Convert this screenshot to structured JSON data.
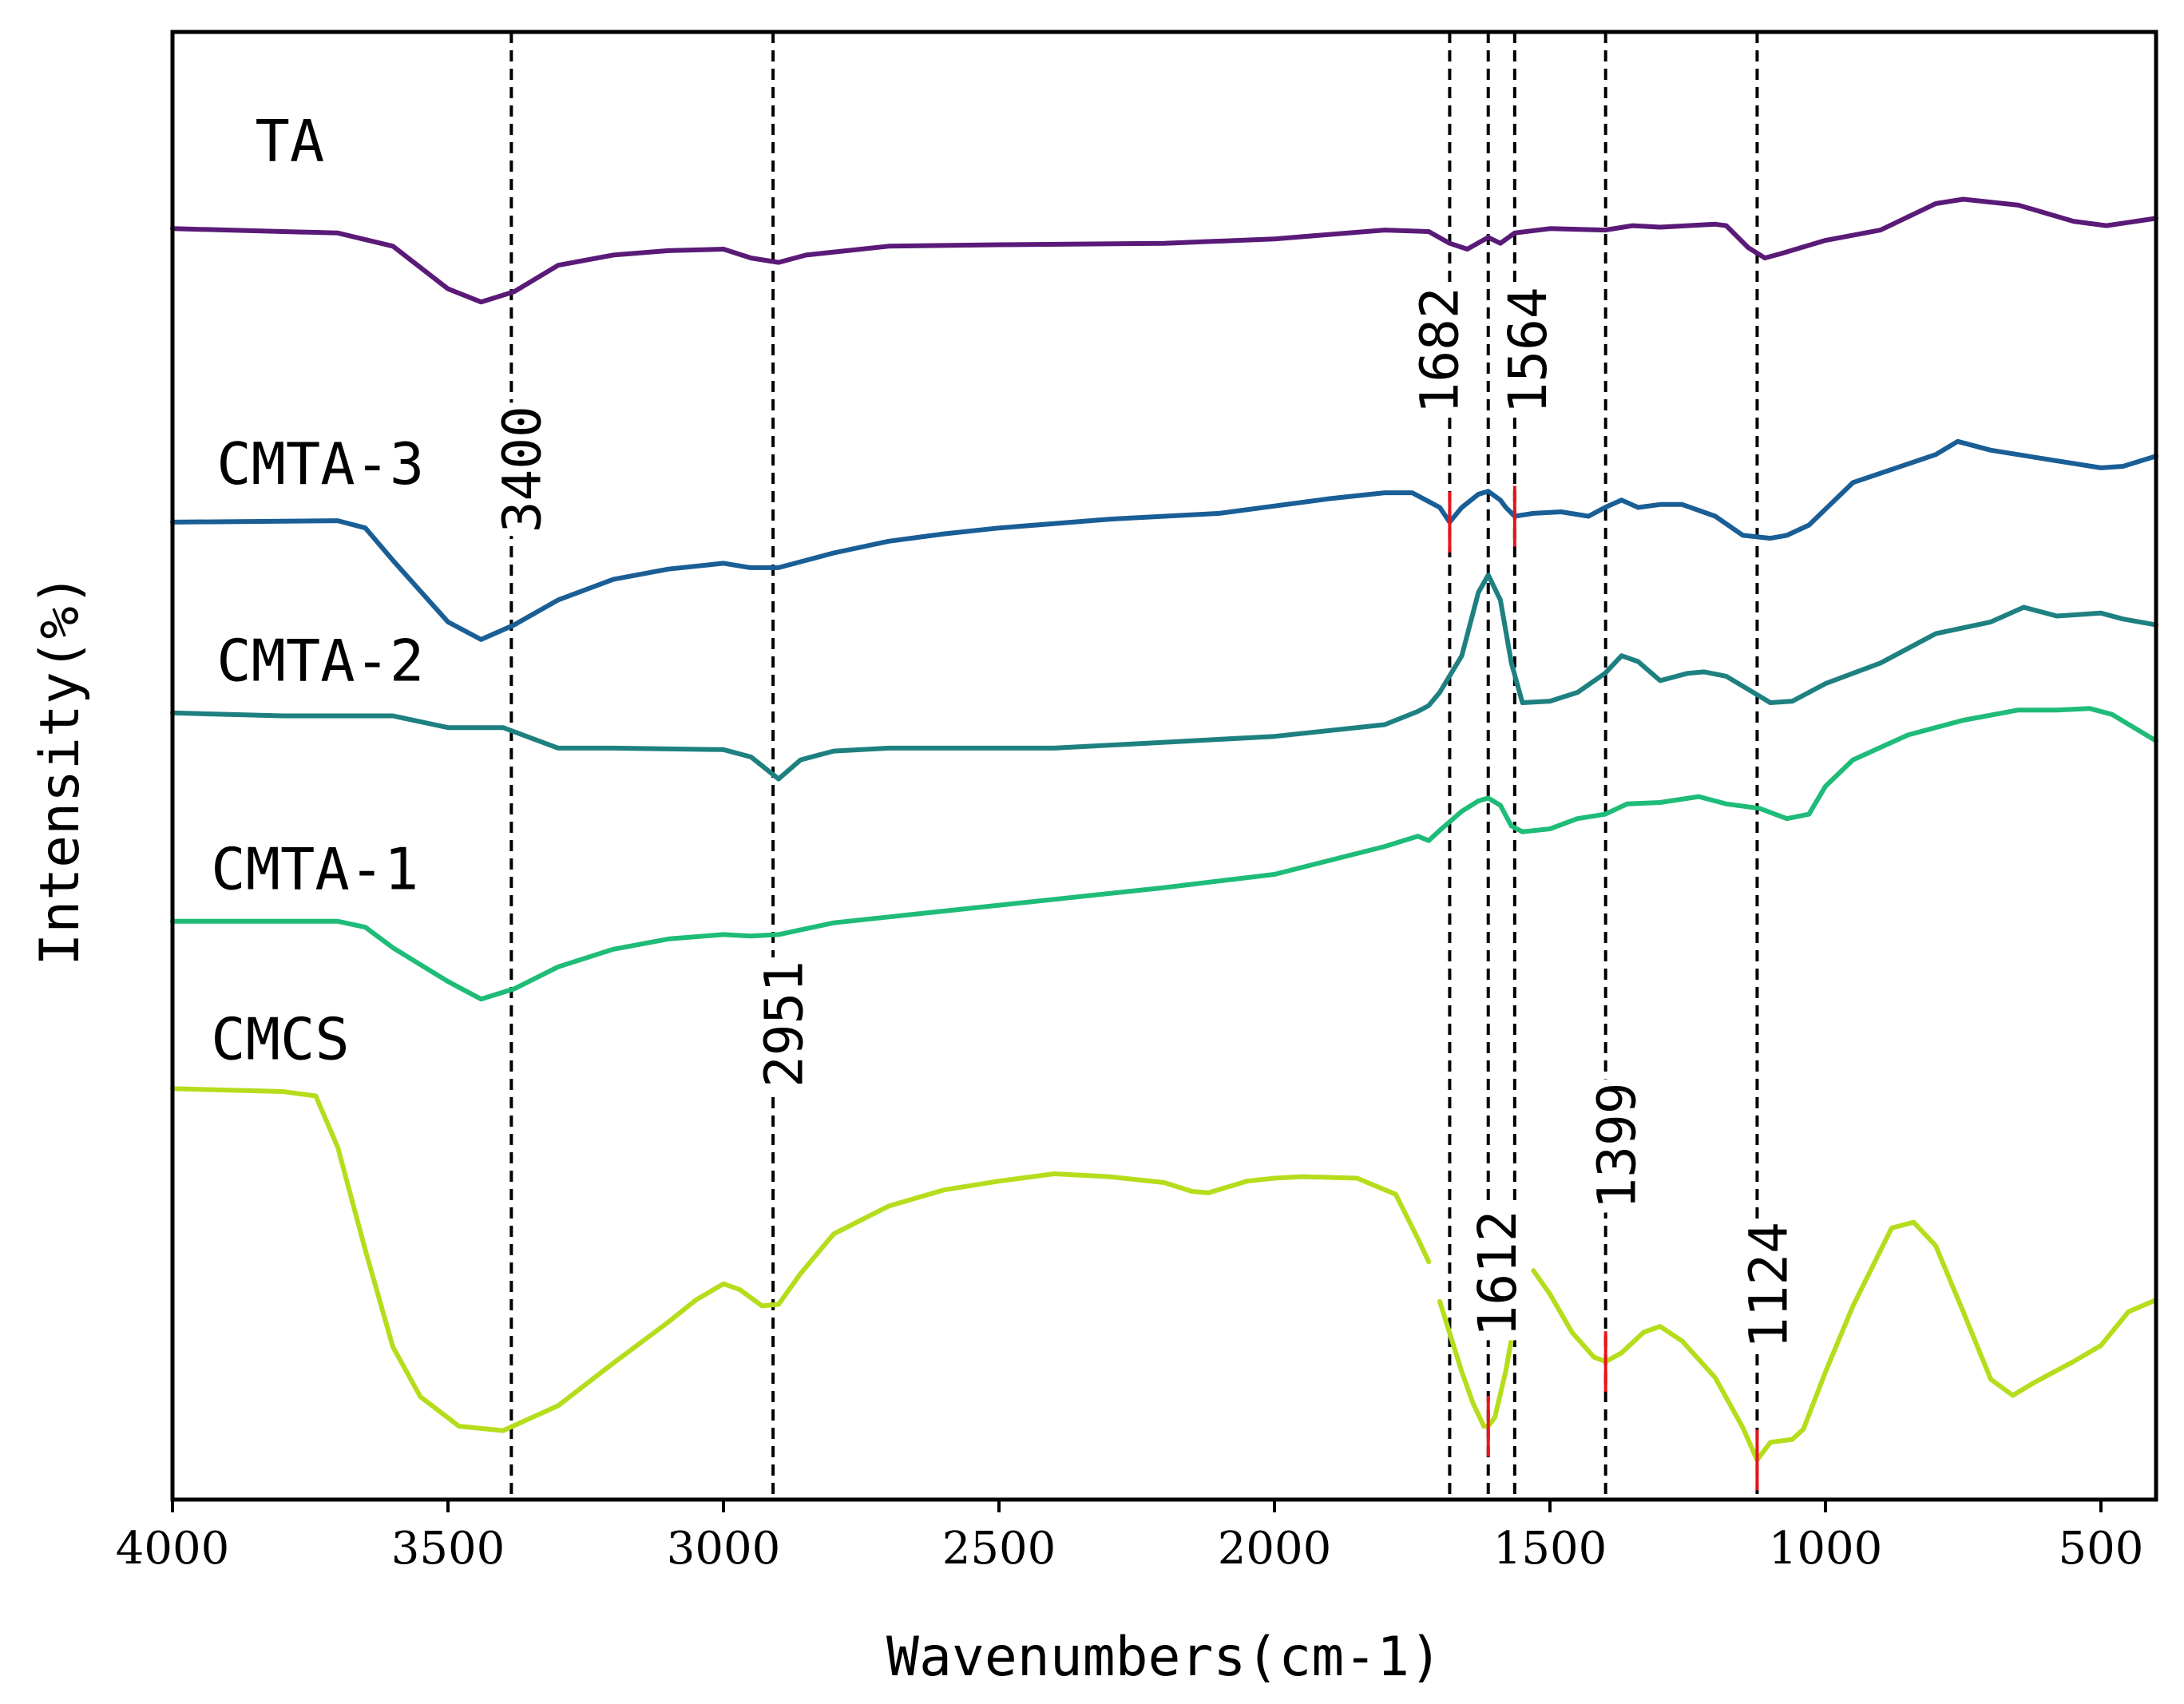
{
  "chart_data": {
    "type": "line",
    "title": "",
    "xlabel": "Wavenumbers(cm-1)",
    "ylabel": "Intensity(%)",
    "xlim": [
      4000,
      400
    ],
    "x_reversed": true,
    "xticks": [
      4000,
      3500,
      3000,
      2500,
      2000,
      1500,
      1000,
      500
    ],
    "ylim": [
      0,
      100
    ],
    "yticks_shown": false,
    "grid": false,
    "legend": "inline labels at left of each trace",
    "series": [
      {
        "name": "TA",
        "color": "#5a1a78",
        "points": [
          [
            4000,
            86.6
          ],
          [
            3700,
            86.3
          ],
          [
            3600,
            85.4
          ],
          [
            3500,
            82.5
          ],
          [
            3440,
            81.6
          ],
          [
            3380,
            82.3
          ],
          [
            3300,
            84.1
          ],
          [
            3200,
            84.8
          ],
          [
            3100,
            85.1
          ],
          [
            3000,
            85.2
          ],
          [
            2950,
            84.6
          ],
          [
            2900,
            84.3
          ],
          [
            2850,
            84.8
          ],
          [
            2700,
            85.4
          ],
          [
            2500,
            85.5
          ],
          [
            2200,
            85.6
          ],
          [
            2000,
            85.9
          ],
          [
            1800,
            86.5
          ],
          [
            1720,
            86.4
          ],
          [
            1682,
            85.6
          ],
          [
            1650,
            85.2
          ],
          [
            1612,
            86.0
          ],
          [
            1590,
            85.6
          ],
          [
            1564,
            86.3
          ],
          [
            1500,
            86.6
          ],
          [
            1400,
            86.5
          ],
          [
            1350,
            86.8
          ],
          [
            1300,
            86.7
          ],
          [
            1200,
            86.9
          ],
          [
            1180,
            86.8
          ],
          [
            1140,
            85.3
          ],
          [
            1110,
            84.6
          ],
          [
            1080,
            84.9
          ],
          [
            1000,
            85.8
          ],
          [
            900,
            86.5
          ],
          [
            800,
            88.3
          ],
          [
            750,
            88.6
          ],
          [
            650,
            88.2
          ],
          [
            550,
            87.1
          ],
          [
            490,
            86.8
          ],
          [
            400,
            87.3
          ]
        ]
      },
      {
        "name": "CMTA-3",
        "color": "#1a5e96",
        "points": [
          [
            4000,
            66.6
          ],
          [
            3700,
            66.7
          ],
          [
            3650,
            66.2
          ],
          [
            3600,
            64.0
          ],
          [
            3500,
            59.8
          ],
          [
            3440,
            58.6
          ],
          [
            3380,
            59.6
          ],
          [
            3300,
            61.3
          ],
          [
            3200,
            62.7
          ],
          [
            3100,
            63.4
          ],
          [
            3000,
            63.8
          ],
          [
            2951,
            63.5
          ],
          [
            2900,
            63.5
          ],
          [
            2800,
            64.5
          ],
          [
            2700,
            65.3
          ],
          [
            2600,
            65.8
          ],
          [
            2500,
            66.2
          ],
          [
            2300,
            66.8
          ],
          [
            2100,
            67.2
          ],
          [
            1900,
            68.2
          ],
          [
            1800,
            68.6
          ],
          [
            1750,
            68.6
          ],
          [
            1700,
            67.6
          ],
          [
            1682,
            66.6
          ],
          [
            1660,
            67.6
          ],
          [
            1630,
            68.5
          ],
          [
            1612,
            68.7
          ],
          [
            1590,
            68.1
          ],
          [
            1580,
            67.6
          ],
          [
            1564,
            67.0
          ],
          [
            1530,
            67.2
          ],
          [
            1480,
            67.3
          ],
          [
            1430,
            67.0
          ],
          [
            1400,
            67.6
          ],
          [
            1370,
            68.1
          ],
          [
            1340,
            67.6
          ],
          [
            1300,
            67.8
          ],
          [
            1260,
            67.8
          ],
          [
            1200,
            67.0
          ],
          [
            1150,
            65.7
          ],
          [
            1100,
            65.5
          ],
          [
            1070,
            65.7
          ],
          [
            1030,
            66.4
          ],
          [
            950,
            69.3
          ],
          [
            800,
            71.2
          ],
          [
            760,
            72.1
          ],
          [
            700,
            71.5
          ],
          [
            600,
            70.9
          ],
          [
            500,
            70.3
          ],
          [
            460,
            70.4
          ],
          [
            400,
            71.1
          ]
        ]
      },
      {
        "name": "CMTA-2",
        "color": "#1e8080",
        "points": [
          [
            4000,
            53.6
          ],
          [
            3800,
            53.4
          ],
          [
            3600,
            53.4
          ],
          [
            3500,
            52.6
          ],
          [
            3400,
            52.6
          ],
          [
            3300,
            51.2
          ],
          [
            3200,
            51.2
          ],
          [
            3000,
            51.1
          ],
          [
            2950,
            50.6
          ],
          [
            2900,
            49.1
          ],
          [
            2860,
            50.4
          ],
          [
            2800,
            51.0
          ],
          [
            2700,
            51.2
          ],
          [
            2600,
            51.2
          ],
          [
            2400,
            51.2
          ],
          [
            2200,
            51.6
          ],
          [
            2000,
            52.0
          ],
          [
            1800,
            52.8
          ],
          [
            1740,
            53.7
          ],
          [
            1720,
            54.1
          ],
          [
            1700,
            55.0
          ],
          [
            1660,
            57.5
          ],
          [
            1630,
            61.8
          ],
          [
            1612,
            63.0
          ],
          [
            1590,
            61.3
          ],
          [
            1570,
            57.0
          ],
          [
            1550,
            54.3
          ],
          [
            1500,
            54.4
          ],
          [
            1450,
            55.0
          ],
          [
            1400,
            56.3
          ],
          [
            1370,
            57.5
          ],
          [
            1340,
            57.1
          ],
          [
            1300,
            55.8
          ],
          [
            1250,
            56.3
          ],
          [
            1220,
            56.4
          ],
          [
            1180,
            56.1
          ],
          [
            1140,
            55.2
          ],
          [
            1100,
            54.3
          ],
          [
            1060,
            54.4
          ],
          [
            1000,
            55.6
          ],
          [
            900,
            57.0
          ],
          [
            800,
            59.0
          ],
          [
            700,
            59.8
          ],
          [
            640,
            60.8
          ],
          [
            580,
            60.2
          ],
          [
            500,
            60.4
          ],
          [
            460,
            60.0
          ],
          [
            400,
            59.6
          ]
        ]
      },
      {
        "name": "CMTA-1",
        "color": "#1ebc78",
        "points": [
          [
            4000,
            39.4
          ],
          [
            3700,
            39.4
          ],
          [
            3650,
            39.0
          ],
          [
            3600,
            37.6
          ],
          [
            3500,
            35.3
          ],
          [
            3440,
            34.1
          ],
          [
            3380,
            34.8
          ],
          [
            3300,
            36.3
          ],
          [
            3200,
            37.5
          ],
          [
            3100,
            38.2
          ],
          [
            3000,
            38.5
          ],
          [
            2951,
            38.4
          ],
          [
            2900,
            38.5
          ],
          [
            2800,
            39.3
          ],
          [
            2700,
            39.7
          ],
          [
            2600,
            40.1
          ],
          [
            2400,
            40.9
          ],
          [
            2200,
            41.7
          ],
          [
            2000,
            42.6
          ],
          [
            1800,
            44.5
          ],
          [
            1740,
            45.2
          ],
          [
            1720,
            44.9
          ],
          [
            1700,
            45.6
          ],
          [
            1660,
            46.9
          ],
          [
            1630,
            47.6
          ],
          [
            1612,
            47.8
          ],
          [
            1590,
            47.3
          ],
          [
            1570,
            45.9
          ],
          [
            1550,
            45.5
          ],
          [
            1500,
            45.7
          ],
          [
            1450,
            46.4
          ],
          [
            1400,
            46.7
          ],
          [
            1360,
            47.4
          ],
          [
            1300,
            47.5
          ],
          [
            1230,
            47.9
          ],
          [
            1180,
            47.4
          ],
          [
            1120,
            47.1
          ],
          [
            1070,
            46.4
          ],
          [
            1030,
            46.7
          ],
          [
            1000,
            48.6
          ],
          [
            950,
            50.4
          ],
          [
            850,
            52.1
          ],
          [
            750,
            53.1
          ],
          [
            650,
            53.8
          ],
          [
            580,
            53.8
          ],
          [
            520,
            53.9
          ],
          [
            480,
            53.5
          ],
          [
            400,
            51.7
          ]
        ]
      },
      {
        "name": "CMCS",
        "color": "#b5dd1c",
        "segments": [
          [
            [
              4000,
              28.0
            ],
            [
              3800,
              27.8
            ],
            [
              3740,
              27.5
            ],
            [
              3700,
              24.0
            ],
            [
              3650,
              17.0
            ],
            [
              3600,
              10.4
            ],
            [
              3550,
              7.0
            ],
            [
              3480,
              5.0
            ],
            [
              3400,
              4.7
            ],
            [
              3300,
              6.4
            ],
            [
              3200,
              9.3
            ],
            [
              3100,
              12.1
            ],
            [
              3050,
              13.6
            ],
            [
              3000,
              14.7
            ],
            [
              2970,
              14.3
            ],
            [
              2930,
              13.2
            ],
            [
              2900,
              13.3
            ],
            [
              2860,
              15.4
            ],
            [
              2800,
              18.1
            ],
            [
              2700,
              20.0
            ],
            [
              2600,
              21.1
            ],
            [
              2500,
              21.7
            ],
            [
              2400,
              22.2
            ],
            [
              2300,
              22.0
            ],
            [
              2200,
              21.6
            ],
            [
              2150,
              21.0
            ],
            [
              2120,
              20.9
            ],
            [
              2050,
              21.7
            ],
            [
              2000,
              21.9
            ],
            [
              1950,
              22.0
            ],
            [
              1850,
              21.9
            ],
            [
              1780,
              20.8
            ],
            [
              1740,
              17.8
            ],
            [
              1720,
              16.2
            ]
          ],
          [
            [
              1700,
              13.5
            ],
            [
              1680,
              11.1
            ],
            [
              1660,
              8.7
            ],
            [
              1640,
              6.6
            ],
            [
              1620,
              5.0
            ],
            [
              1612,
              5.0
            ],
            [
              1600,
              5.6
            ],
            [
              1580,
              8.8
            ],
            [
              1560,
              13.0
            ]
          ],
          [
            [
              1530,
              15.6
            ],
            [
              1500,
              14.0
            ],
            [
              1460,
              11.4
            ],
            [
              1420,
              9.7
            ],
            [
              1399,
              9.4
            ],
            [
              1370,
              10.0
            ],
            [
              1330,
              11.4
            ],
            [
              1300,
              11.8
            ],
            [
              1260,
              10.8
            ],
            [
              1200,
              8.3
            ],
            [
              1150,
              4.9
            ],
            [
              1124,
              2.7
            ],
            [
              1100,
              3.9
            ],
            [
              1060,
              4.1
            ],
            [
              1040,
              4.8
            ],
            [
              1000,
              8.7
            ],
            [
              950,
              13.2
            ],
            [
              880,
              18.5
            ],
            [
              840,
              18.9
            ],
            [
              800,
              17.3
            ],
            [
              750,
              12.8
            ],
            [
              700,
              8.2
            ],
            [
              660,
              7.1
            ],
            [
              620,
              8.0
            ],
            [
              550,
              9.4
            ],
            [
              500,
              10.5
            ],
            [
              450,
              12.8
            ],
            [
              400,
              13.6
            ]
          ]
        ]
      }
    ],
    "label_positions": [
      {
        "name": "TA",
        "x": 3850,
        "y": 91.2
      },
      {
        "name": "CMTA-3",
        "x": 3920,
        "y": 69.2
      },
      {
        "name": "CMTA-2",
        "x": 3920,
        "y": 55.8
      },
      {
        "name": "CMTA-1",
        "x": 3930,
        "y": 41.6
      },
      {
        "name": "CMCS",
        "x": 3930,
        "y": 30.0
      }
    ],
    "reference_lines": [
      3385,
      2910,
      1682,
      1612,
      1564,
      1399,
      1124
    ],
    "annotations": [
      {
        "text": "3400",
        "x": 3365,
        "y": 70.2
      },
      {
        "text": "2951",
        "x": 2890,
        "y": 32.4
      },
      {
        "text": "1682",
        "x": 1700,
        "y": 78.3
      },
      {
        "text": "1564",
        "x": 1540,
        "y": 78.3
      },
      {
        "text": "1612",
        "x": 1595,
        "y": 15.4
      },
      {
        "text": "1399",
        "x": 1378,
        "y": 24.1
      },
      {
        "text": "1124",
        "x": 1103,
        "y": 14.6
      }
    ],
    "red_markers": [
      {
        "x": 1682,
        "y": 66.6
      },
      {
        "x": 1564,
        "y": 67.0
      },
      {
        "x": 1612,
        "y": 5.0
      },
      {
        "x": 1399,
        "y": 9.4
      },
      {
        "x": 1124,
        "y": 2.7
      }
    ]
  }
}
